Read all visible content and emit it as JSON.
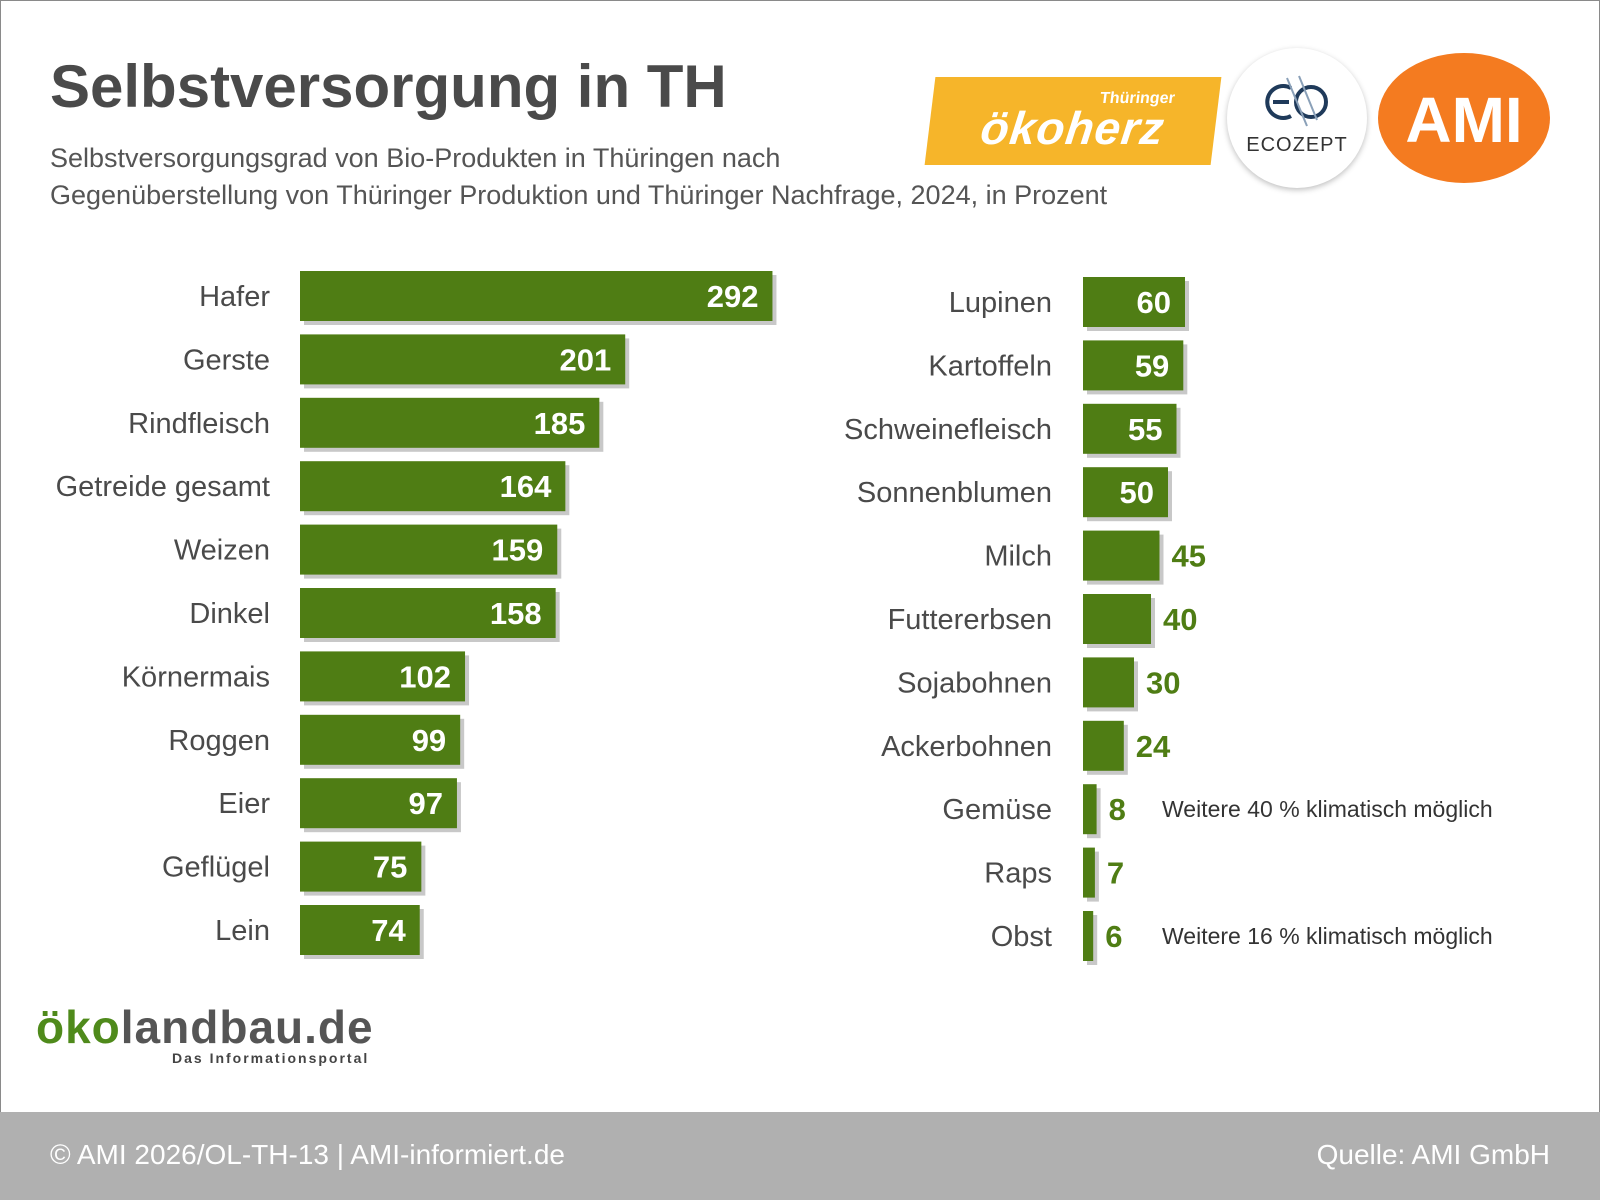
{
  "header": {
    "title": "Selbstversorgung in TH",
    "subtitle_line1": "Selbstversorgungsgrad von Bio-Produkten in Thüringen nach",
    "subtitle_line2": "Gegenüberstellung von Thüringer Produktion und Thüringer Nachfrage, 2024, in Prozent"
  },
  "logos": {
    "oekoherz_small": "Thüringer",
    "oekoherz_main": "ökoherz",
    "ecozept": "ECOZEPT",
    "ami": "AMI",
    "oekolandbau_part1": "öko",
    "oekolandbau_part2": "landbau.de",
    "oekolandbau_sub": "Das Informationsportal"
  },
  "colors": {
    "bar": "#4f7d14",
    "bar_shadow": "#9a9a9a",
    "value_outside": "#4f7d14",
    "footer": "#b0b0b0"
  },
  "chart_data": [
    {
      "type": "bar",
      "orientation": "horizontal",
      "categories": [
        "Hafer",
        "Gerste",
        "Rindfleisch",
        "Getreide gesamt",
        "Weizen",
        "Dinkel",
        "Körnermais",
        "Roggen",
        "Eier",
        "Geflügel",
        "Lein"
      ],
      "values": [
        292,
        201,
        185,
        164,
        159,
        158,
        102,
        99,
        97,
        75,
        74
      ],
      "notes": []
    },
    {
      "type": "bar",
      "orientation": "horizontal",
      "categories": [
        "Lupinen",
        "Kartoffeln",
        "Schweinefleisch",
        "Sonnenblumen",
        "Milch",
        "Futtererbsen",
        "Sojabohnen",
        "Ackerbohnen",
        "Gemüse",
        "Raps",
        "Obst"
      ],
      "values": [
        60,
        59,
        55,
        50,
        45,
        40,
        30,
        24,
        8,
        7,
        6
      ],
      "notes": [
        "",
        "",
        "",
        "",
        "",
        "",
        "",
        "",
        "Weitere 40 % klimatisch möglich",
        "",
        "Weitere 16 % klimatisch möglich"
      ]
    }
  ],
  "footer": {
    "left": "© AMI 2026/OL-TH-13 | AMI-informiert.de",
    "right": "Quelle: AMI GmbH"
  }
}
